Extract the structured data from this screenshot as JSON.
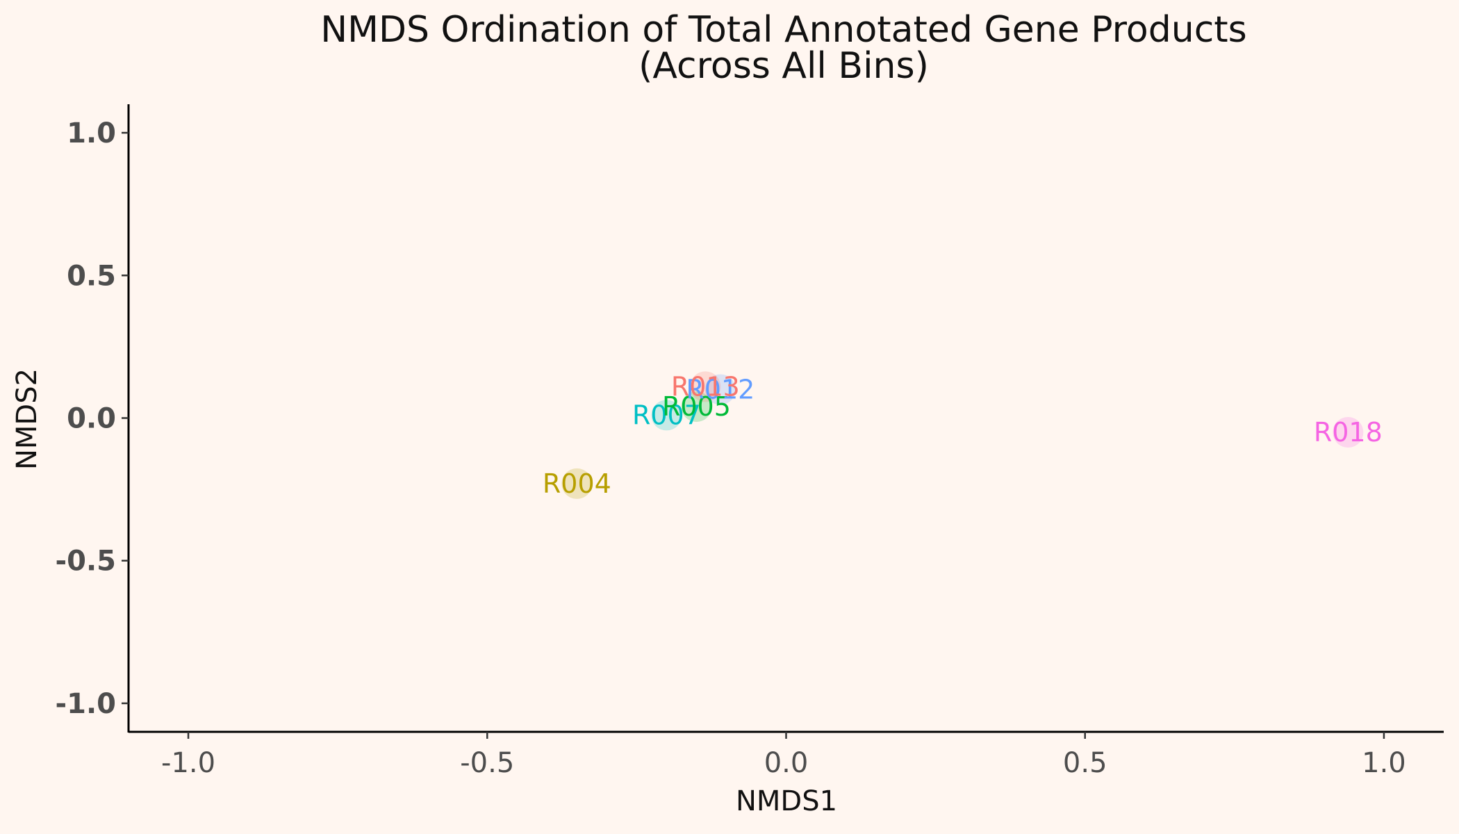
{
  "chart_data": {
    "type": "scatter",
    "title": "NMDS Ordination of Total Annotated Gene Products",
    "subtitle": "(Across All Bins)",
    "xlabel": "NMDS1",
    "ylabel": "NMDS2",
    "xlim": [
      -1.1,
      1.1
    ],
    "ylim": [
      -1.1,
      1.1
    ],
    "x_ticks": [
      -1.0,
      -0.5,
      0.0,
      0.5,
      1.0
    ],
    "x_tick_labels": [
      "-1.0",
      "-0.5",
      "0.0",
      "0.5",
      "1.0"
    ],
    "y_ticks": [
      -1.0,
      -0.5,
      0.0,
      0.5,
      1.0
    ],
    "y_tick_labels": [
      "-1.0",
      "-0.5",
      "0.0",
      "0.5",
      "1.0"
    ],
    "grid": false,
    "legend": false,
    "points": [
      {
        "label": "R004",
        "x": -0.35,
        "y": -0.23,
        "color": "#B79F00"
      },
      {
        "label": "R007",
        "x": -0.2,
        "y": 0.01,
        "color": "#00BFC4"
      },
      {
        "label": "R005",
        "x": -0.15,
        "y": 0.04,
        "color": "#00BA38"
      },
      {
        "label": "R012",
        "x": -0.11,
        "y": 0.1,
        "color": "#619CFF"
      },
      {
        "label": "R013",
        "x": -0.135,
        "y": 0.11,
        "color": "#F8766D"
      },
      {
        "label": "R018",
        "x": 0.94,
        "y": -0.05,
        "color": "#F564E3"
      }
    ]
  }
}
